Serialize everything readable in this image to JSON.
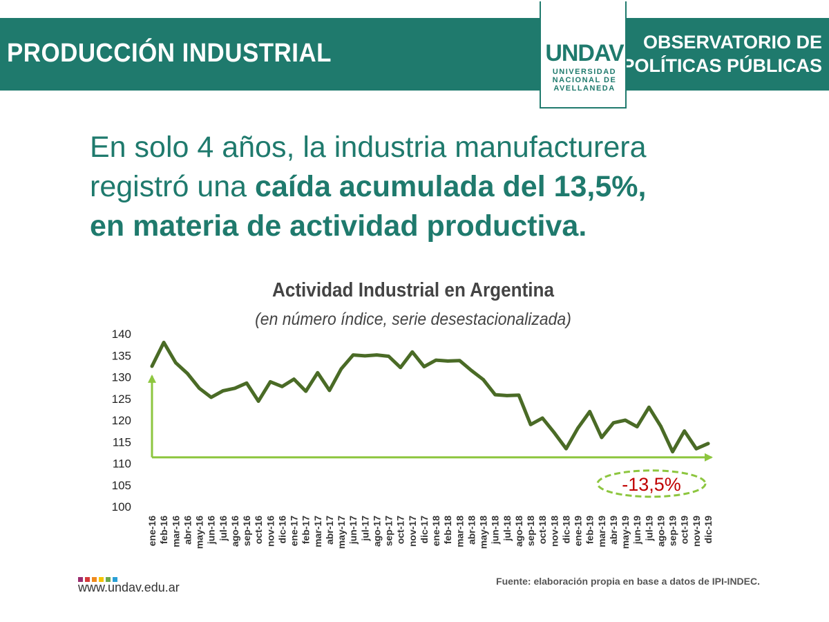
{
  "header": {
    "title": "PRODUCCIÓN INDUSTRIAL",
    "observatory_line1": "OBSERVATORIO DE",
    "observatory_line2": "POLÍTICAS PÚBLICAS",
    "logo_mark": "UNDAV",
    "logo_line1": "UNIVERSIDAD",
    "logo_line2": "NACIONAL DE",
    "logo_line3": "AVELLANEDA"
  },
  "headline": {
    "part1": "En solo 4 años, la industria manufacturera",
    "part2": "registró una ",
    "bold1": "caída acumulada del 13,5%,",
    "bold2": "en materia de actividad productiva."
  },
  "chart_data": {
    "type": "line",
    "title": "Actividad Industrial en Argentina",
    "subtitle": "(en número índice, serie desestacionalizada)",
    "xlabel": "",
    "ylabel": "",
    "ylim": [
      100,
      140
    ],
    "yticks": [
      140,
      135,
      130,
      125,
      120,
      115,
      110,
      105,
      100
    ],
    "grid": false,
    "categories": [
      "ene-16",
      "feb-16",
      "mar-16",
      "abr-16",
      "may-16",
      "jun-16",
      "jul-16",
      "ago-16",
      "sep-16",
      "oct-16",
      "nov-16",
      "dic-16",
      "ene-17",
      "feb-17",
      "mar-17",
      "abr-17",
      "may-17",
      "jun-17",
      "jul-17",
      "ago-17",
      "sep-17",
      "oct-17",
      "nov-17",
      "dic-17",
      "ene-18",
      "feb-18",
      "mar-18",
      "abr-18",
      "may-18",
      "jun-18",
      "jul-18",
      "ago-18",
      "sep-18",
      "oct-18",
      "nov-18",
      "dic-18",
      "ene-19",
      "feb-19",
      "mar-19",
      "abr-19",
      "may-19",
      "jun-19",
      "jul-19",
      "ago-19",
      "sep-19",
      "oct-19",
      "nov-19",
      "dic-19"
    ],
    "series": [
      {
        "name": "Actividad Industrial",
        "color": "#4a6b26",
        "values": [
          132.5,
          138.0,
          133.3,
          130.8,
          127.4,
          125.3,
          126.8,
          127.4,
          128.6,
          124.4,
          128.9,
          127.8,
          129.5,
          126.7,
          131.0,
          126.9,
          131.9,
          135.1,
          134.9,
          135.1,
          134.8,
          132.2,
          135.8,
          132.4,
          133.9,
          133.7,
          133.8,
          131.5,
          129.4,
          125.9,
          125.7,
          125.8,
          119.0,
          120.5,
          117.1,
          113.4,
          118.2,
          122.0,
          116.0,
          119.4,
          120.0,
          118.5,
          123.0,
          118.6,
          112.7,
          117.5,
          113.4,
          114.6
        ]
      }
    ],
    "annotation": {
      "text": "-13,5%",
      "color": "#c00000",
      "from_index": 0,
      "to_index": 47,
      "arrow_color": "#8dc63f"
    }
  },
  "footer": {
    "url": "www.undav.edu.ar",
    "source": "Fuente: elaboración propia en base a datos de IPI-INDEC.",
    "dot_colors": [
      "#9b2d6f",
      "#d63a3a",
      "#f08a1c",
      "#f5c400",
      "#6aa84f",
      "#2a9fd6"
    ]
  }
}
